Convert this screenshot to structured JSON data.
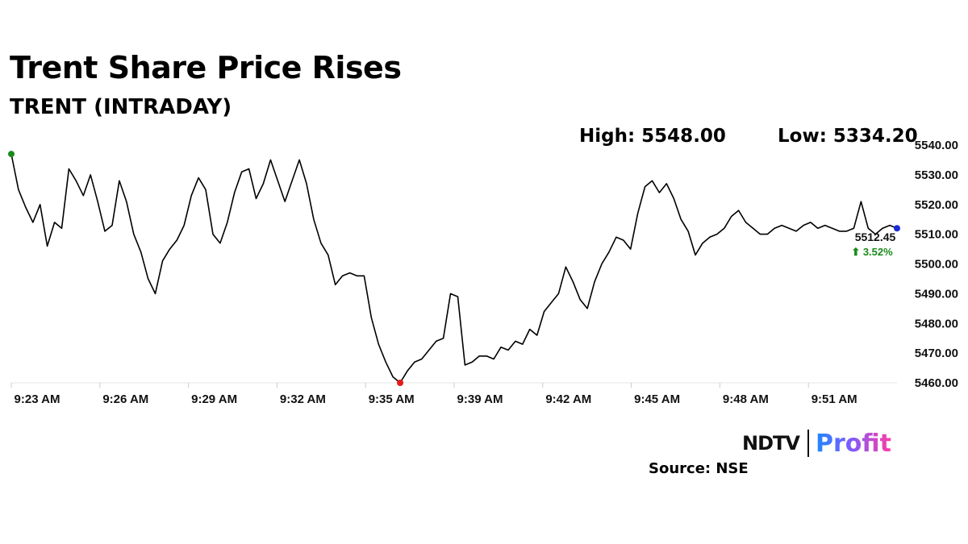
{
  "header": {
    "title": "Trent Share Price Rises",
    "subtitle": "TRENT (INTRADAY)",
    "high_text": "High: 5548.00",
    "low_text": "Low: 5334.20"
  },
  "last_price": {
    "value_text": "5512.45",
    "change_text": "⬆ 3.52%",
    "change_color": "#1a8a1a"
  },
  "colors": {
    "line": "#000000",
    "start_marker": "#1a8a1a",
    "low_marker": "#e61919",
    "end_marker": "#1a2ad8",
    "grid": "#e6e6e6"
  },
  "brand": {
    "ndtv": "NDTV",
    "profit": "Profit"
  },
  "source": "Source: NSE",
  "chart_data": {
    "type": "line",
    "title": "TRENT (INTRADAY)",
    "xlabel": "",
    "ylabel": "",
    "x_ticks": [
      "9:23 AM",
      "9:26 AM",
      "9:29 AM",
      "9:32 AM",
      "9:35 AM",
      "9:39 AM",
      "9:42 AM",
      "9:45 AM",
      "9:48 AM",
      "9:51 AM"
    ],
    "y_ticks": [
      5540,
      5530,
      5520,
      5510,
      5500,
      5490,
      5480,
      5470,
      5460
    ],
    "y_tick_labels": [
      "5540.00",
      "5530.00",
      "5520.00",
      "5510.00",
      "5500.00",
      "5490.00",
      "5480.00",
      "5470.00",
      "5460.00"
    ],
    "ylim": [
      5460,
      5540
    ],
    "grid": false,
    "series": [
      {
        "values": [
          5537,
          5525,
          5519,
          5514,
          5520,
          5506,
          5514,
          5512,
          5532,
          5528,
          5523,
          5530,
          5521,
          5511,
          5513,
          5528,
          5521,
          5510,
          5504,
          5495,
          5490,
          5501,
          5505,
          5508,
          5513,
          5523,
          5529,
          5525,
          5510,
          5507,
          5514,
          5524,
          5531,
          5532,
          5522,
          5527,
          5535,
          5528,
          5521,
          5528,
          5535,
          5527,
          5515,
          5507,
          5503,
          5493,
          5496,
          5497,
          5496,
          5496,
          5482,
          5473,
          5467,
          5462,
          5460,
          5464,
          5467,
          5468,
          5471,
          5474,
          5475,
          5490,
          5489,
          5466,
          5467,
          5469,
          5469,
          5468,
          5472,
          5471,
          5474,
          5473,
          5478,
          5476,
          5484,
          5487,
          5490,
          5499,
          5494,
          5488,
          5485,
          5494,
          5500,
          5504,
          5509,
          5508,
          5505,
          5517,
          5526,
          5528,
          5524,
          5527,
          5522,
          5515,
          5511,
          5503,
          5507,
          5509,
          5510,
          5512,
          5516,
          5518,
          5514,
          5512,
          5510,
          5510,
          5512,
          5513,
          5512,
          5511,
          5513,
          5514,
          5512,
          5513,
          5512,
          5511,
          5511,
          5512,
          5521,
          5512,
          5510,
          5512,
          5513,
          5512
        ]
      }
    ],
    "last_value": 5512.45,
    "change_pct": 3.52
  }
}
